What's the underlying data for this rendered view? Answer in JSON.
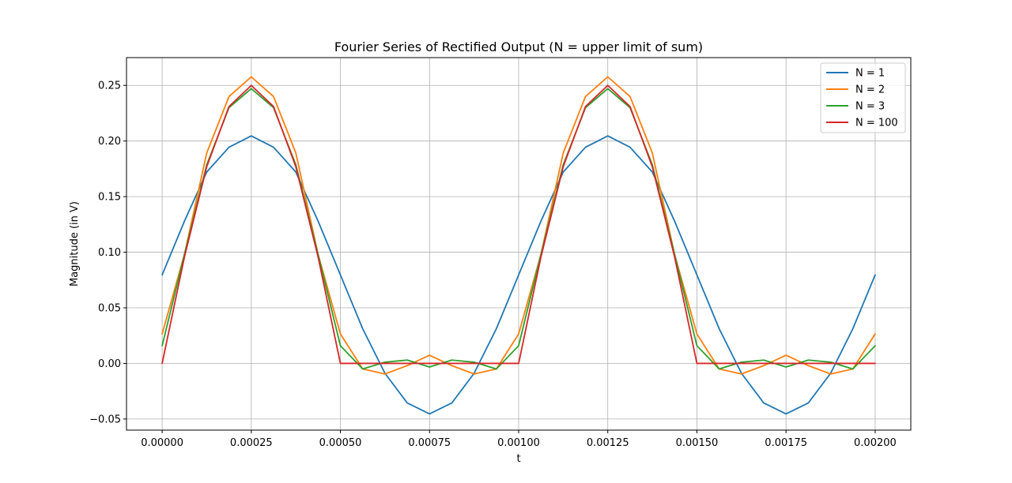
{
  "chart_data": {
    "type": "line",
    "title": "Fourier Series of Rectified Output (N = upper limit of sum)",
    "xlabel": "t",
    "ylabel": "Magnitude (in V)",
    "xlim": [
      -0.0001,
      0.0021
    ],
    "ylim": [
      -0.06,
      0.275
    ],
    "x_ticks": [
      0.0,
      0.00025,
      0.0005,
      0.00075,
      0.001,
      0.00125,
      0.0015,
      0.00175,
      0.002
    ],
    "x_tick_labels": [
      "0.00000",
      "0.00025",
      "0.00050",
      "0.00075",
      "0.00100",
      "0.00125",
      "0.00150",
      "0.00175",
      "0.00200"
    ],
    "y_ticks": [
      -0.05,
      0.0,
      0.05,
      0.1,
      0.15,
      0.2,
      0.25
    ],
    "y_tick_labels": [
      "−0.05",
      "0.00",
      "0.05",
      "0.10",
      "0.15",
      "0.20",
      "0.25"
    ],
    "grid": true,
    "legend_position": "top-right",
    "x": [
      0.0,
      6.25e-05,
      0.000125,
      0.0001875,
      0.00025,
      0.0003125,
      0.000375,
      0.0004375,
      0.0005,
      0.0005625,
      0.000625,
      0.0006875,
      0.00075,
      0.0008125,
      0.000875,
      0.0009375,
      0.001,
      0.0010625,
      0.001125,
      0.0011875,
      0.00125,
      0.0013125,
      0.001375,
      0.0014375,
      0.0015,
      0.0015625,
      0.001625,
      0.0016875,
      0.00175,
      0.0018125,
      0.001875,
      0.0019375,
      0.002
    ],
    "series": [
      {
        "name": "N = 1",
        "color": "#1f77b4",
        "values": [
          0.0796,
          0.1279,
          0.1721,
          0.1944,
          0.2046,
          0.1944,
          0.1721,
          0.1279,
          0.0796,
          0.0312,
          -0.0089,
          -0.0356,
          -0.0454,
          -0.0356,
          -0.0089,
          0.0312,
          0.0796,
          0.1279,
          0.1721,
          0.1944,
          0.2046,
          0.1944,
          0.1721,
          0.1279,
          0.0796,
          0.0312,
          -0.0089,
          -0.0356,
          -0.0454,
          -0.0356,
          -0.0089,
          0.0312,
          0.0796
        ]
      },
      {
        "name": "N = 2",
        "color": "#ff7f0e",
        "values": [
          0.0265,
          0.098,
          0.1892,
          0.24,
          0.2577,
          0.24,
          0.1892,
          0.098,
          0.0265,
          -0.005,
          -0.0095,
          -0.002,
          0.0074,
          -0.002,
          -0.0095,
          -0.005,
          0.0265,
          0.098,
          0.1892,
          0.24,
          0.2577,
          0.24,
          0.1892,
          0.098,
          0.0265,
          -0.005,
          -0.0095,
          -0.002,
          0.0074,
          -0.002,
          -0.0095,
          -0.005,
          0.0265
        ]
      },
      {
        "name": "N = 3",
        "color": "#2ca02c",
        "values": [
          0.0159,
          0.098,
          0.1786,
          0.23,
          0.2471,
          0.23,
          0.1786,
          0.098,
          0.0159,
          -0.005,
          0.0011,
          0.003,
          -0.0032,
          0.003,
          0.0011,
          -0.005,
          0.0159,
          0.098,
          0.1786,
          0.23,
          0.2471,
          0.23,
          0.1786,
          0.098,
          0.0159,
          -0.005,
          0.0011,
          0.003,
          -0.0032,
          0.003,
          0.0011,
          -0.005,
          0.0159
        ]
      },
      {
        "name": "N = 100",
        "color": "#d62728",
        "values": [
          0.0,
          0.0957,
          0.1768,
          0.231,
          0.25,
          0.231,
          0.1768,
          0.0957,
          0.0,
          0.0,
          0.0,
          0.0,
          0.0,
          0.0,
          0.0,
          0.0,
          0.0,
          0.0957,
          0.1768,
          0.231,
          0.25,
          0.231,
          0.1768,
          0.0957,
          0.0,
          0.0,
          0.0,
          0.0,
          0.0,
          0.0,
          0.0,
          0.0,
          0.0
        ]
      }
    ]
  }
}
